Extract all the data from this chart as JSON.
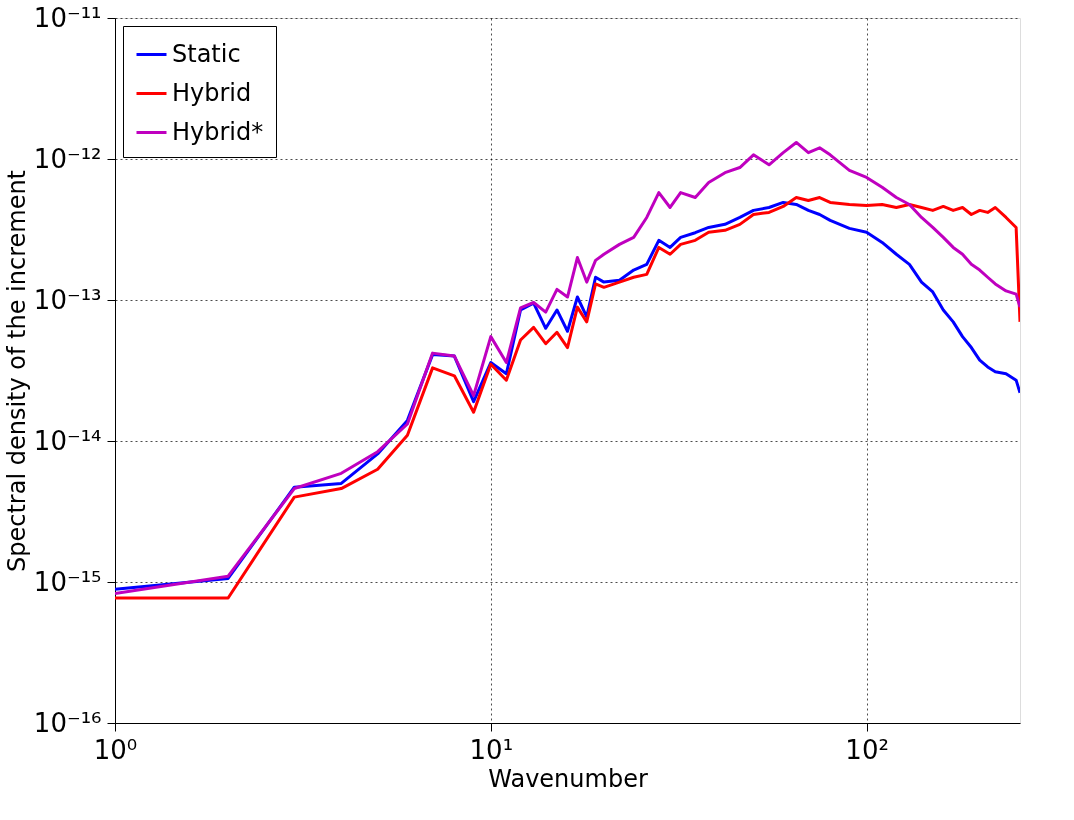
{
  "chart_data": {
    "type": "line",
    "xlabel": "Wavenumber",
    "ylabel": "Spectral density of the increment",
    "log": "xy",
    "grid": true,
    "legend": "top left",
    "line_style": "solid",
    "marker": "none",
    "xlim": [
      1,
      256
    ],
    "ylim": [
      1e-16,
      1e-11
    ],
    "xticks": [
      {
        "value": 1,
        "label": "10⁰"
      },
      {
        "value": 10,
        "label": "10¹"
      },
      {
        "value": 100,
        "label": "10²"
      }
    ],
    "yticks": [
      {
        "value": 1e-16,
        "label": "10⁻¹⁶"
      },
      {
        "value": 1e-15,
        "label": "10⁻¹⁵"
      },
      {
        "value": 1e-14,
        "label": "10⁻¹⁴"
      },
      {
        "value": 1e-13,
        "label": "10⁻¹³"
      },
      {
        "value": 1e-12,
        "label": "10⁻¹²"
      },
      {
        "value": 1e-11,
        "label": "10⁻¹¹"
      }
    ],
    "x": [
      1,
      2,
      3,
      4,
      5,
      6,
      7,
      8,
      9,
      10,
      11,
      12,
      13,
      14,
      15,
      16,
      17,
      18,
      19,
      20,
      22,
      24,
      26,
      28,
      30,
      32,
      35,
      38,
      42,
      46,
      50,
      55,
      60,
      65,
      70,
      75,
      80,
      90,
      100,
      110,
      120,
      130,
      140,
      150,
      160,
      170,
      180,
      190,
      200,
      210,
      220,
      235,
      250,
      256
    ],
    "series": [
      {
        "name": "Static",
        "color": "#0000ff",
        "values": [
          8.9e-16,
          1.06e-15,
          4.7e-15,
          5e-15,
          8.1e-15,
          1.4e-14,
          4.1e-14,
          4e-14,
          1.9e-14,
          3.6e-14,
          3e-14,
          8.5e-14,
          9.5e-14,
          6.3e-14,
          8.5e-14,
          6e-14,
          1.05e-13,
          7.6e-14,
          1.45e-13,
          1.34e-13,
          1.38e-13,
          1.63e-13,
          1.79e-13,
          2.65e-13,
          2.36e-13,
          2.78e-13,
          3e-13,
          3.27e-13,
          3.44e-13,
          3.85e-13,
          4.32e-13,
          4.53e-13,
          4.92e-13,
          4.76e-13,
          4.32e-13,
          4.04e-13,
          3.67e-13,
          3.22e-13,
          3.02e-13,
          2.56e-13,
          2.11e-13,
          1.79e-13,
          1.34e-13,
          1.14e-13,
          8.5e-14,
          7e-14,
          5.5e-14,
          4.6e-14,
          3.75e-14,
          3.35e-14,
          3.1e-14,
          3e-14,
          2.7e-14,
          2.2e-14
        ]
      },
      {
        "name": "Hybrid",
        "color": "#ff0000",
        "values": [
          7.7e-16,
          7.7e-16,
          4e-15,
          4.6e-15,
          6.3e-15,
          1.1e-14,
          3.3e-14,
          2.9e-14,
          1.6e-14,
          3.5e-14,
          2.7e-14,
          5.2e-14,
          6.4e-14,
          4.9e-14,
          5.9e-14,
          4.6e-14,
          8.9e-14,
          7e-14,
          1.3e-13,
          1.23e-13,
          1.34e-13,
          1.45e-13,
          1.52e-13,
          2.36e-13,
          2.11e-13,
          2.48e-13,
          2.65e-13,
          3.02e-13,
          3.12e-13,
          3.44e-13,
          4.04e-13,
          4.18e-13,
          4.61e-13,
          5.33e-13,
          5.08e-13,
          5.33e-13,
          4.92e-13,
          4.76e-13,
          4.68e-13,
          4.76e-13,
          4.53e-13,
          4.76e-13,
          4.53e-13,
          4.32e-13,
          4.61e-13,
          4.32e-13,
          4.53e-13,
          4.04e-13,
          4.32e-13,
          4.18e-13,
          4.53e-13,
          3.85e-13,
          3.27e-13,
          7e-14
        ]
      },
      {
        "name": "Hybrid*",
        "color": "#bf00bf",
        "values": [
          8.3e-16,
          1.1e-15,
          4.6e-15,
          5.9e-15,
          8.4e-15,
          1.32e-14,
          4.2e-14,
          4e-14,
          2.1e-14,
          5.5e-14,
          3.6e-14,
          8.8e-14,
          9.6e-14,
          8.2e-14,
          1.19e-13,
          1.05e-13,
          2e-13,
          1.34e-13,
          1.91e-13,
          2.11e-13,
          2.48e-13,
          2.78e-13,
          3.85e-13,
          5.78e-13,
          4.53e-13,
          5.78e-13,
          5.33e-13,
          6.81e-13,
          8e-13,
          8.7e-13,
          1.07e-12,
          9.1e-13,
          1.11e-12,
          1.31e-12,
          1.11e-12,
          1.2e-12,
          1.07e-12,
          8.3e-13,
          7.4e-13,
          6.3e-13,
          5.33e-13,
          4.76e-13,
          3.85e-13,
          3.27e-13,
          2.78e-13,
          2.36e-13,
          2.11e-13,
          1.79e-13,
          1.63e-13,
          1.45e-13,
          1.3e-13,
          1.16e-13,
          1.1e-13,
          8.9e-14
        ]
      }
    ]
  }
}
